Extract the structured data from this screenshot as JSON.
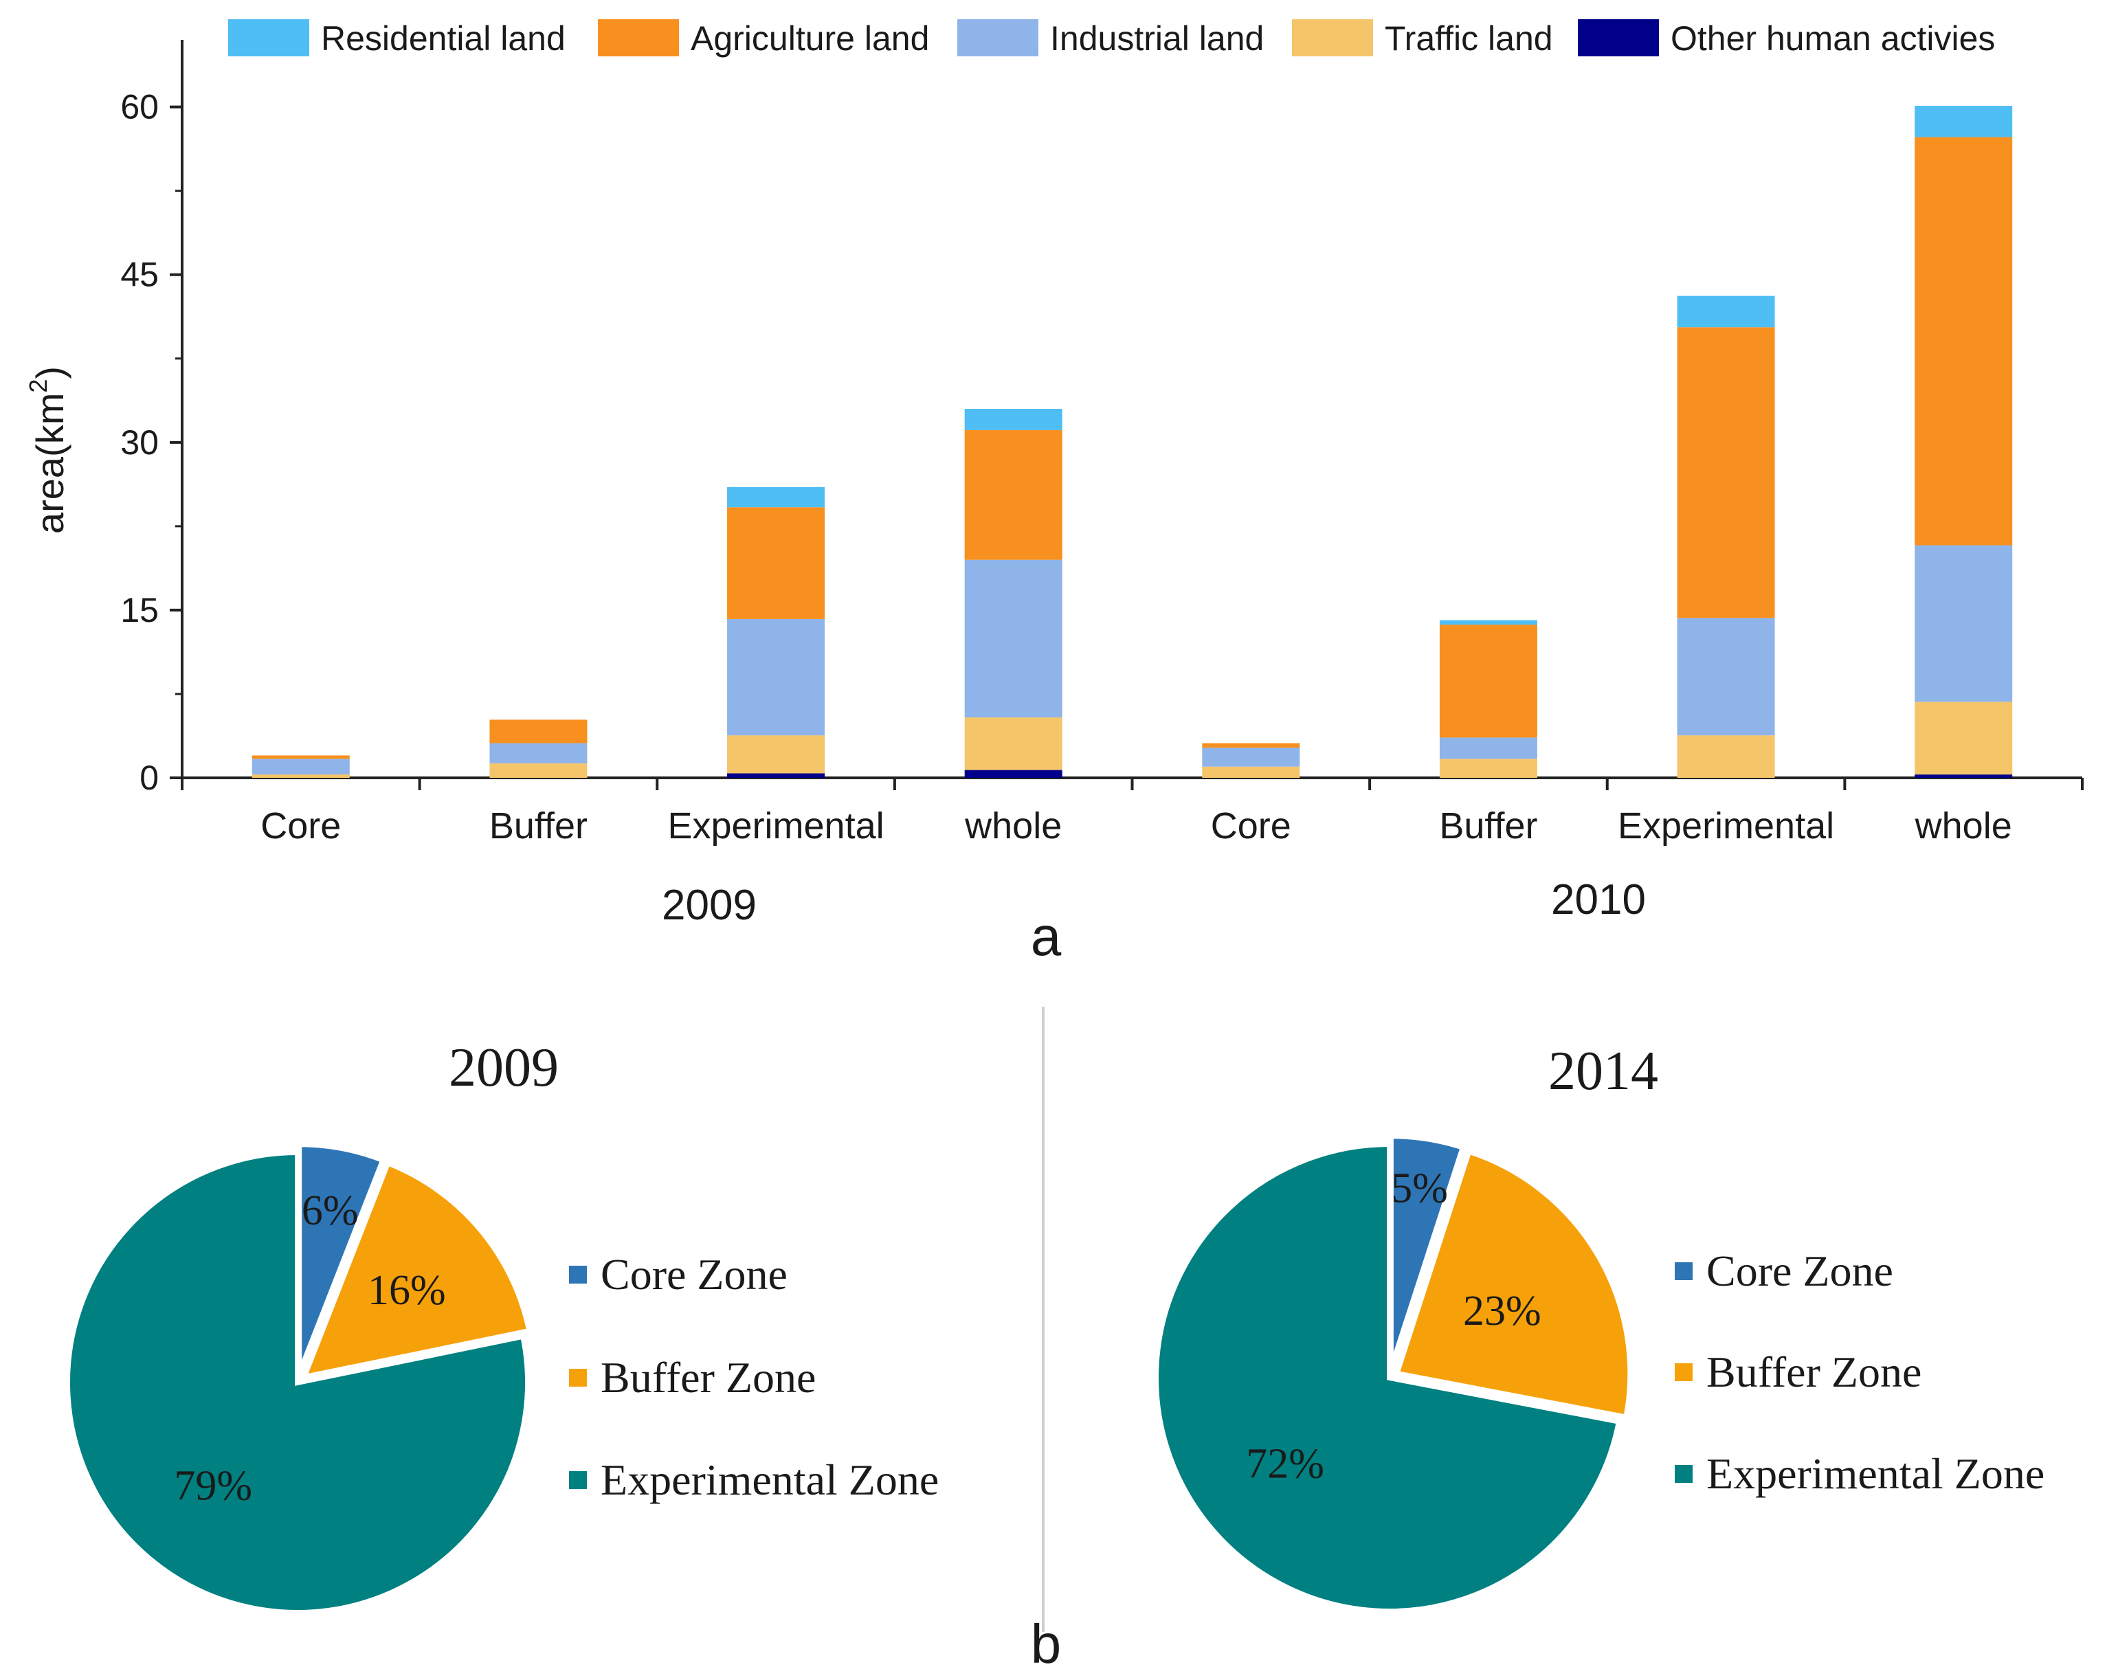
{
  "bar_chart": {
    "panel_label": "a",
    "ylabel": "area(km²)",
    "ylabel_base": "area(km",
    "ylabel_sup": "2",
    "ylabel_close": ")",
    "yticks": [
      "0",
      "15",
      "30",
      "45",
      "60"
    ],
    "groups": [
      "2009",
      "2010"
    ]
  },
  "pie_panel": {
    "panel_label": "b"
  },
  "chart_data": [
    {
      "type": "bar",
      "stacked": true,
      "categories": [
        "Core",
        "Buffer",
        "Experimental",
        "whole",
        "Core",
        "Buffer",
        "Experimental",
        "whole"
      ],
      "category_groups": [
        "2009",
        "2009",
        "2009",
        "2009",
        "2010",
        "2010",
        "2010",
        "2010"
      ],
      "ylim": [
        0,
        66
      ],
      "yticks": [
        0,
        15,
        30,
        45,
        60
      ],
      "xlabel": "",
      "ylabel": "area(km²)",
      "legend_position": "top",
      "series": [
        {
          "name": "Other human activies",
          "color": "#00008b",
          "values": [
            0,
            0,
            0.4,
            0.7,
            0,
            0,
            0,
            0.3
          ]
        },
        {
          "name": "Traffic land",
          "color": "#f5c56a",
          "values": [
            0.3,
            1.3,
            3.4,
            4.7,
            1.0,
            1.7,
            3.8,
            6.5
          ]
        },
        {
          "name": "Industrial land",
          "color": "#8fb4ea",
          "values": [
            1.4,
            1.8,
            10.4,
            14.1,
            1.7,
            1.9,
            10.5,
            14.0
          ]
        },
        {
          "name": "Agriculture land",
          "color": "#f7901e",
          "values": [
            0.3,
            2.1,
            10.0,
            11.6,
            0.4,
            10.1,
            26.0,
            36.5
          ]
        },
        {
          "name": "Residential land",
          "color": "#4fbef5",
          "values": [
            0,
            0,
            1.8,
            1.9,
            0,
            0.4,
            2.8,
            2.8
          ]
        }
      ],
      "legend_order": [
        "Residential land",
        "Agriculture land",
        "Industrial land",
        "Traffic land",
        "Other human activies"
      ]
    },
    {
      "type": "pie",
      "title": "2009",
      "legend_position": "right",
      "slices": [
        {
          "label": "Core Zone",
          "value": 6,
          "text": "6%",
          "color": "#2e75b6"
        },
        {
          "label": "Buffer Zone",
          "value": 16,
          "text": "16%",
          "color": "#f7a10a"
        },
        {
          "label": "Experimental Zone",
          "value": 79,
          "text": "79%",
          "color": "#008080"
        }
      ]
    },
    {
      "type": "pie",
      "title": "2014",
      "legend_position": "right",
      "slices": [
        {
          "label": "Core Zone",
          "value": 5,
          "text": "5%",
          "color": "#2e75b6"
        },
        {
          "label": "Buffer Zone",
          "value": 23,
          "text": "23%",
          "color": "#f7a10a"
        },
        {
          "label": "Experimental Zone",
          "value": 72,
          "text": "72%",
          "color": "#008080"
        }
      ]
    }
  ]
}
